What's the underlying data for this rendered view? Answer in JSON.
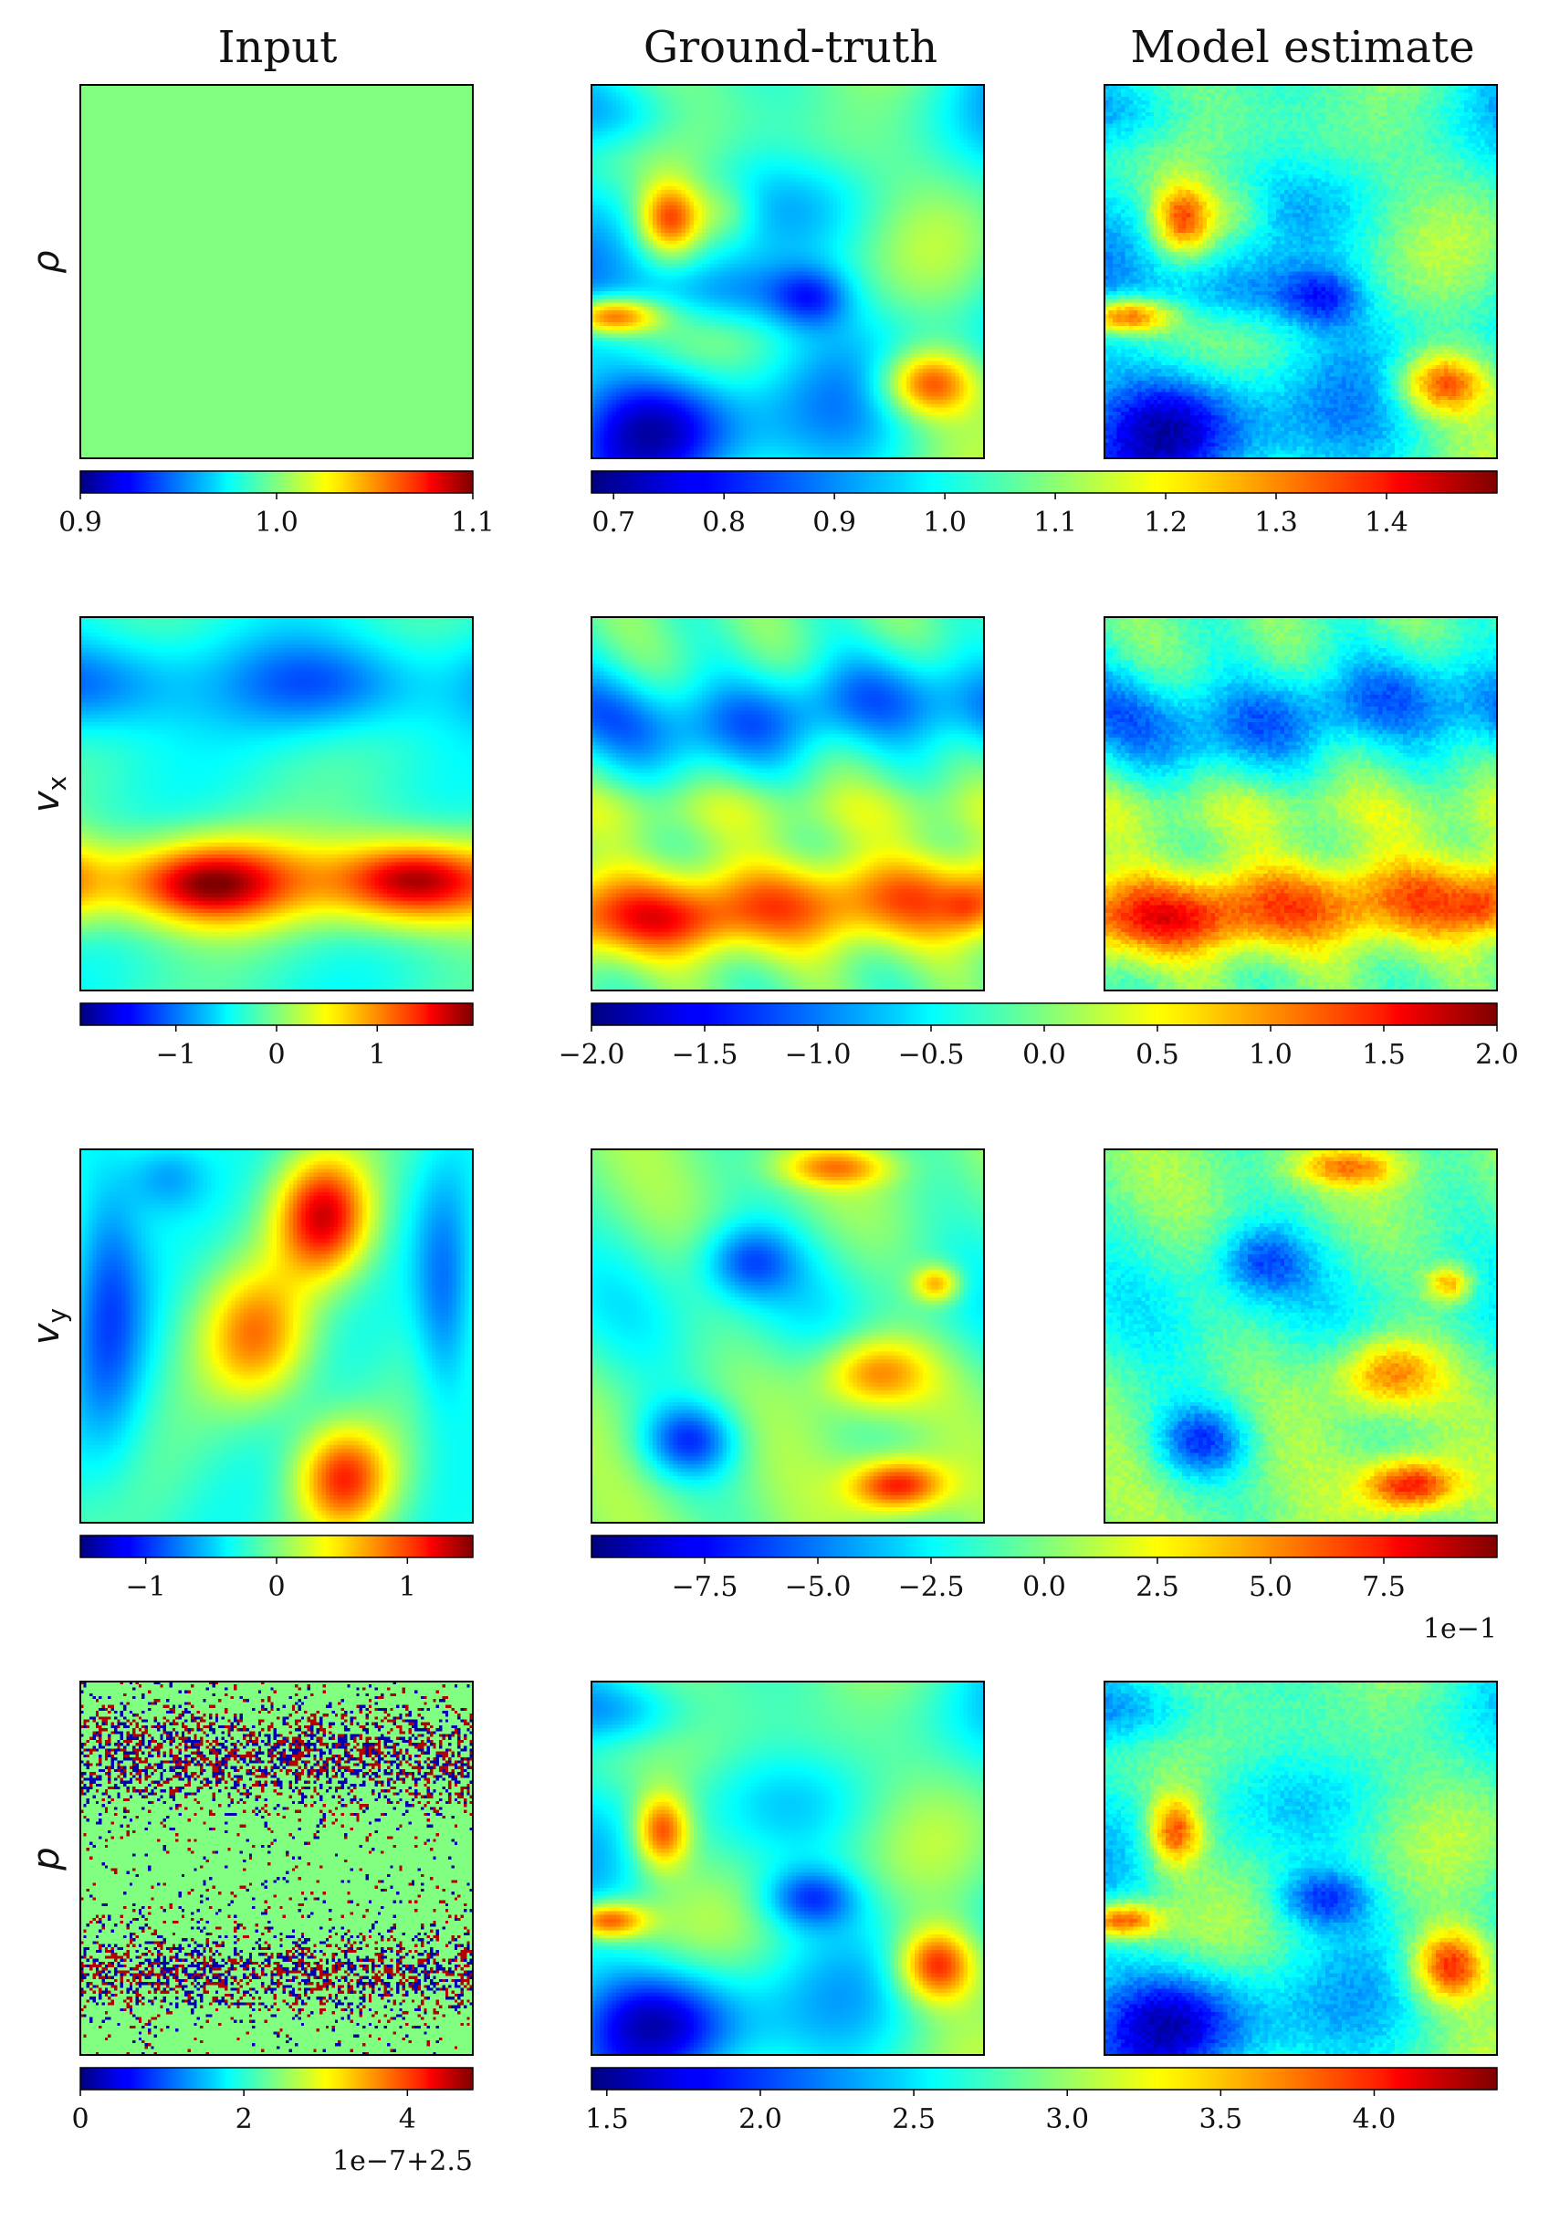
{
  "columns": {
    "input": "Input",
    "ground_truth": "Ground-truth",
    "model_estimate": "Model estimate"
  },
  "colors": {
    "colormap": "jet",
    "frame": "#000000",
    "background": "#ffffff"
  },
  "chart_data": [
    {
      "type": "heatmap",
      "row": 0,
      "row_label": "ρ",
      "panels": [
        "Input",
        "Ground-truth",
        "Model estimate"
      ],
      "input": {
        "field": "uniform",
        "value": 1.0,
        "colorbar": {
          "range": [
            0.9,
            1.1
          ],
          "ticks": [
            0.9,
            1.0,
            1.1
          ],
          "tick_labels": [
            "0.9",
            "1.0",
            "1.1"
          ],
          "offset_label": ""
        }
      },
      "output": {
        "field": "density",
        "colorbar": {
          "range": [
            0.68,
            1.5
          ],
          "ticks": [
            0.7,
            0.8,
            0.9,
            1.0,
            1.1,
            1.2,
            1.3,
            1.4
          ],
          "tick_labels": [
            "0.7",
            "0.8",
            "0.9",
            "1.0",
            "1.1",
            "1.2",
            "1.3",
            "1.4"
          ],
          "offset_label": ""
        }
      }
    },
    {
      "type": "heatmap",
      "row": 1,
      "row_label": "v_x",
      "row_label_main": "v",
      "row_label_sub": "x",
      "panels": [
        "Input",
        "Ground-truth",
        "Model estimate"
      ],
      "input": {
        "field": "smooth-horizontal-bands",
        "colorbar": {
          "range": [
            -1.95,
            1.95
          ],
          "ticks": [
            -1,
            0,
            1
          ],
          "tick_labels": [
            "−1",
            "0",
            "1"
          ],
          "offset_label": ""
        }
      },
      "output": {
        "field": "sheared-bands",
        "colorbar": {
          "range": [
            -2.0,
            2.0
          ],
          "ticks": [
            -2.0,
            -1.5,
            -1.0,
            -0.5,
            0.0,
            0.5,
            1.0,
            1.5,
            2.0
          ],
          "tick_labels": [
            "−2.0",
            "−1.5",
            "−1.0",
            "−0.5",
            "0.0",
            "0.5",
            "1.0",
            "1.5",
            "2.0"
          ],
          "offset_label": ""
        }
      }
    },
    {
      "type": "heatmap",
      "row": 2,
      "row_label": "v_y",
      "row_label_main": "v",
      "row_label_sub": "y",
      "panels": [
        "Input",
        "Ground-truth",
        "Model estimate"
      ],
      "input": {
        "field": "smooth-vertical-blobs",
        "colorbar": {
          "range": [
            -1.5,
            1.5
          ],
          "ticks": [
            -1,
            0,
            1
          ],
          "tick_labels": [
            "−1",
            "0",
            "1"
          ],
          "offset_label": ""
        }
      },
      "output": {
        "field": "vertical-velocity",
        "colorbar": {
          "range": [
            -10.0,
            10.0
          ],
          "ticks": [
            -7.5,
            -5.0,
            -2.5,
            0.0,
            2.5,
            5.0,
            7.5
          ],
          "tick_labels": [
            "−7.5",
            "−5.0",
            "−2.5",
            "0.0",
            "2.5",
            "5.0",
            "7.5"
          ],
          "offset_label": "1e−1"
        }
      }
    },
    {
      "type": "heatmap",
      "row": 3,
      "row_label": "p",
      "panels": [
        "Input",
        "Ground-truth",
        "Model estimate"
      ],
      "input": {
        "field": "noisy-near-constant",
        "colorbar": {
          "range": [
            0,
            4.8
          ],
          "ticks": [
            0,
            2,
            4
          ],
          "tick_labels": [
            "0",
            "2",
            "4"
          ],
          "offset_label": "1e−7+2.5"
        }
      },
      "output": {
        "field": "pressure",
        "colorbar": {
          "range": [
            1.45,
            4.4
          ],
          "ticks": [
            1.5,
            2.0,
            2.5,
            3.0,
            3.5,
            4.0
          ],
          "tick_labels": [
            "1.5",
            "2.0",
            "2.5",
            "3.0",
            "3.5",
            "4.0"
          ],
          "offset_label": ""
        }
      }
    }
  ]
}
